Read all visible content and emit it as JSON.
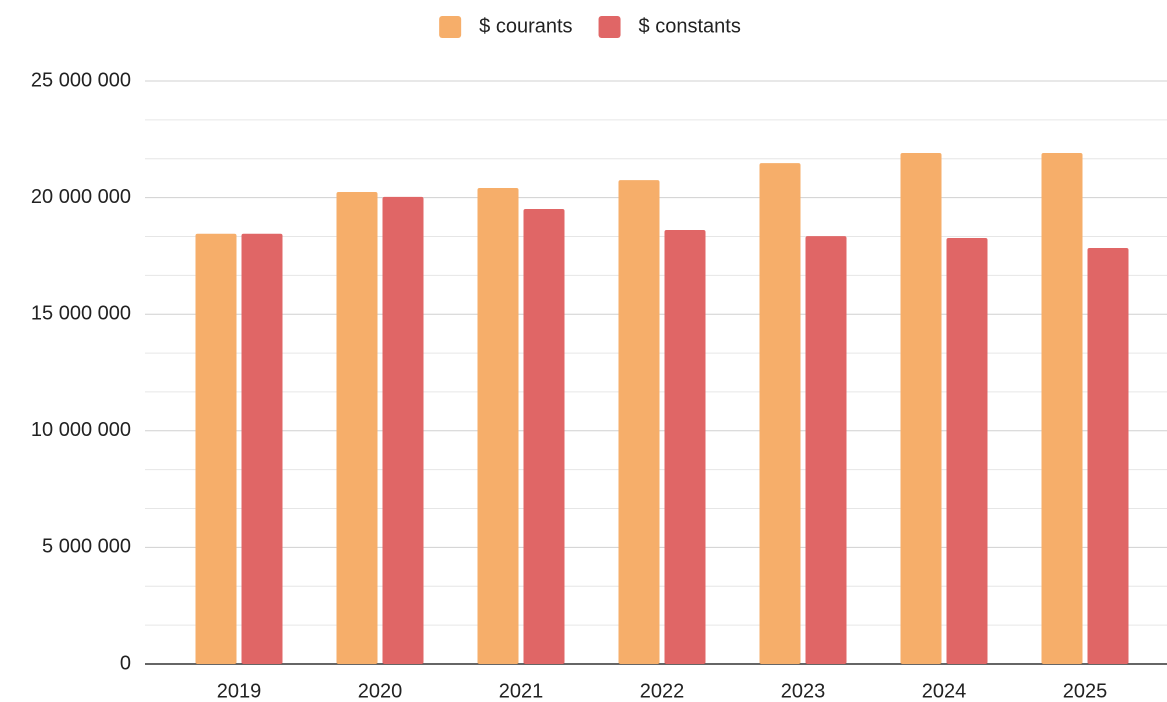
{
  "chart_data": {
    "type": "bar",
    "categories": [
      "2019",
      "2020",
      "2021",
      "2022",
      "2023",
      "2024",
      "2025"
    ],
    "series": [
      {
        "name": "$ courants",
        "color": "#f6ae6a",
        "values": [
          18450000,
          20240000,
          20410000,
          20750000,
          21480000,
          21910000,
          21910000
        ]
      },
      {
        "name": "$ constants",
        "color": "#e06666",
        "values": [
          18450000,
          20030000,
          19510000,
          18610000,
          18350000,
          18270000,
          17840000
        ]
      }
    ],
    "ylim": [
      0,
      25000000
    ],
    "yticks": [
      0,
      {
        "value": 5000000,
        "label": "5 000 000"
      },
      {
        "value": 10000000,
        "label": "10 000 000"
      },
      {
        "value": 15000000,
        "label": "15 000 000"
      },
      {
        "value": 20000000,
        "label": "20 000 000"
      },
      {
        "value": 25000000,
        "label": "25 000 000"
      }
    ],
    "grid": true,
    "minor_grid_divisions": 3,
    "legend": "top"
  }
}
